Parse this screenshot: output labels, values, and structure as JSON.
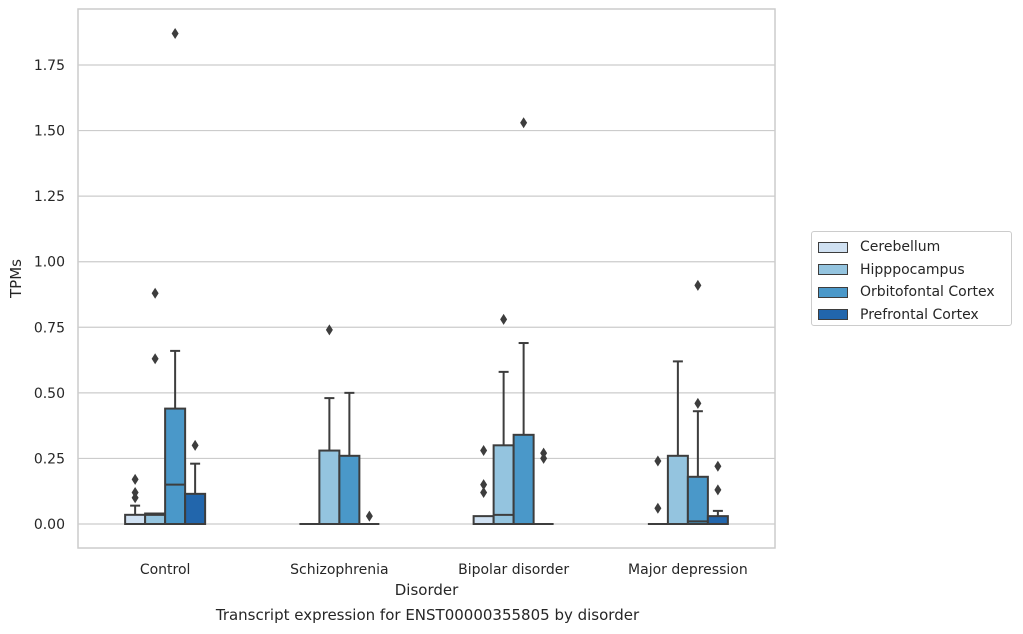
{
  "chart_data": {
    "type": "box",
    "xlabel": "Disorder",
    "ylabel": "TPMs",
    "caption": "Transcript expression for ENST00000355805 by disorder",
    "ylim": [
      -0.09,
      1.97
    ],
    "yticks": [
      "0.00",
      "0.25",
      "0.50",
      "0.75",
      "1.00",
      "1.25",
      "1.50",
      "1.75"
    ],
    "grid": true,
    "legend_position": "right",
    "categories": [
      "Control",
      "Schizophrenia",
      "Bipolar disorder",
      "Major depression"
    ],
    "series": [
      {
        "name": "Cerebellum",
        "color": "#d0e1f2",
        "boxes": [
          {
            "whislo": 0.0,
            "q1": 0.0,
            "med": 0.0,
            "q3": 0.035,
            "whishi": 0.07,
            "fliers": [
              0.17,
              0.12,
              0.1
            ]
          },
          {
            "whislo": 0.0,
            "q1": 0.0,
            "med": 0.0,
            "q3": 0.0,
            "whishi": 0.0,
            "fliers": []
          },
          {
            "whislo": 0.0,
            "q1": 0.0,
            "med": 0.0,
            "q3": 0.03,
            "whishi": 0.03,
            "fliers": [
              0.28,
              0.15,
              0.12
            ]
          },
          {
            "whislo": 0.0,
            "q1": 0.0,
            "med": 0.0,
            "q3": 0.0,
            "whishi": 0.0,
            "fliers": [
              0.24,
              0.06
            ]
          }
        ]
      },
      {
        "name": "Hipppocampus",
        "color": "#94c4df",
        "boxes": [
          {
            "whislo": 0.0,
            "q1": 0.0,
            "med": 0.035,
            "q3": 0.04,
            "whishi": 0.04,
            "fliers": [
              0.88,
              0.63
            ]
          },
          {
            "whislo": 0.0,
            "q1": 0.0,
            "med": 0.0,
            "q3": 0.28,
            "whishi": 0.48,
            "fliers": [
              0.74
            ]
          },
          {
            "whislo": 0.0,
            "q1": 0.0,
            "med": 0.035,
            "q3": 0.3,
            "whishi": 0.58,
            "fliers": [
              0.78
            ]
          },
          {
            "whislo": 0.0,
            "q1": 0.0,
            "med": 0.0,
            "q3": 0.26,
            "whishi": 0.62,
            "fliers": []
          }
        ]
      },
      {
        "name": "Orbitofontal Cortex",
        "color": "#4a98c9",
        "boxes": [
          {
            "whislo": 0.0,
            "q1": 0.0,
            "med": 0.15,
            "q3": 0.44,
            "whishi": 0.66,
            "fliers": [
              1.87
            ]
          },
          {
            "whislo": 0.0,
            "q1": 0.0,
            "med": 0.0,
            "q3": 0.26,
            "whishi": 0.5,
            "fliers": []
          },
          {
            "whislo": 0.0,
            "q1": 0.0,
            "med": 0.0,
            "q3": 0.34,
            "whishi": 0.69,
            "fliers": [
              1.53
            ]
          },
          {
            "whislo": 0.0,
            "q1": 0.0,
            "med": 0.01,
            "q3": 0.18,
            "whishi": 0.43,
            "fliers": [
              0.91,
              0.46
            ]
          }
        ]
      },
      {
        "name": "Prefrontal Cortex",
        "color": "#2266ac",
        "boxes": [
          {
            "whislo": 0.0,
            "q1": 0.0,
            "med": 0.0,
            "q3": 0.115,
            "whishi": 0.23,
            "fliers": [
              0.3
            ]
          },
          {
            "whislo": 0.0,
            "q1": 0.0,
            "med": 0.0,
            "q3": 0.0,
            "whishi": 0.0,
            "fliers": [
              0.03
            ]
          },
          {
            "whislo": 0.0,
            "q1": 0.0,
            "med": 0.0,
            "q3": 0.0,
            "whishi": 0.0,
            "fliers": [
              0.27,
              0.25
            ]
          },
          {
            "whislo": 0.0,
            "q1": 0.0,
            "med": 0.0,
            "q3": 0.03,
            "whishi": 0.05,
            "fliers": [
              0.22,
              0.13
            ]
          }
        ]
      }
    ]
  }
}
